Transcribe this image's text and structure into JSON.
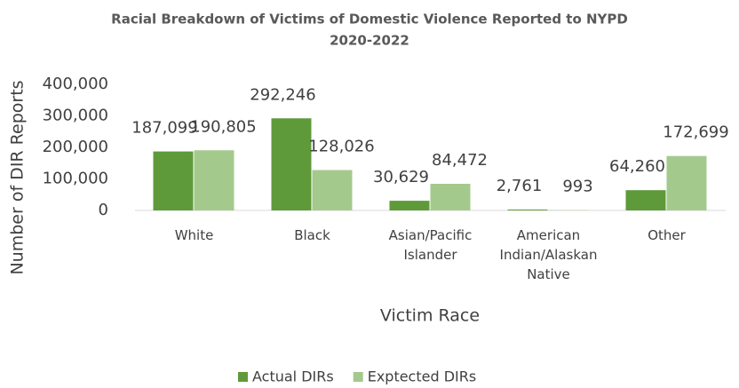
{
  "chart_data": {
    "type": "bar",
    "title": [
      "Racial Breakdown of Victims of Domestic Violence Reported to NYPD",
      "2020-2022"
    ],
    "x_label": "Victim Race",
    "y_label": "Number of DIR Reports",
    "categories": [
      "White",
      "Black",
      "Asian/Pacific Islander",
      "American Indian/Alaskan Native",
      "Other"
    ],
    "series": [
      {
        "name": "Actual DIRs",
        "color": "#5e9a3a",
        "values": [
          187099,
          292246,
          30629,
          2761,
          64260
        ],
        "value_labels": [
          "187,099",
          "292,246",
          "30,629",
          "2,761",
          "64,260"
        ]
      },
      {
        "name": "Exptected DIRs",
        "color": "#a4c98d",
        "values": [
          190805,
          128026,
          84472,
          993,
          172699
        ],
        "value_labels": [
          "190,805",
          "128,026",
          "84,472",
          "993",
          "172,699"
        ]
      }
    ],
    "ylim": [
      0,
      400000
    ],
    "yticks": [
      0,
      {
        "value": 100000,
        "label": "100,000"
      },
      {
        "value": 200000,
        "label": "200,000"
      },
      {
        "value": 300000,
        "label": "300,000"
      },
      {
        "value": 400000,
        "label": "400,000"
      }
    ],
    "grid": false,
    "legend": "bottom"
  }
}
